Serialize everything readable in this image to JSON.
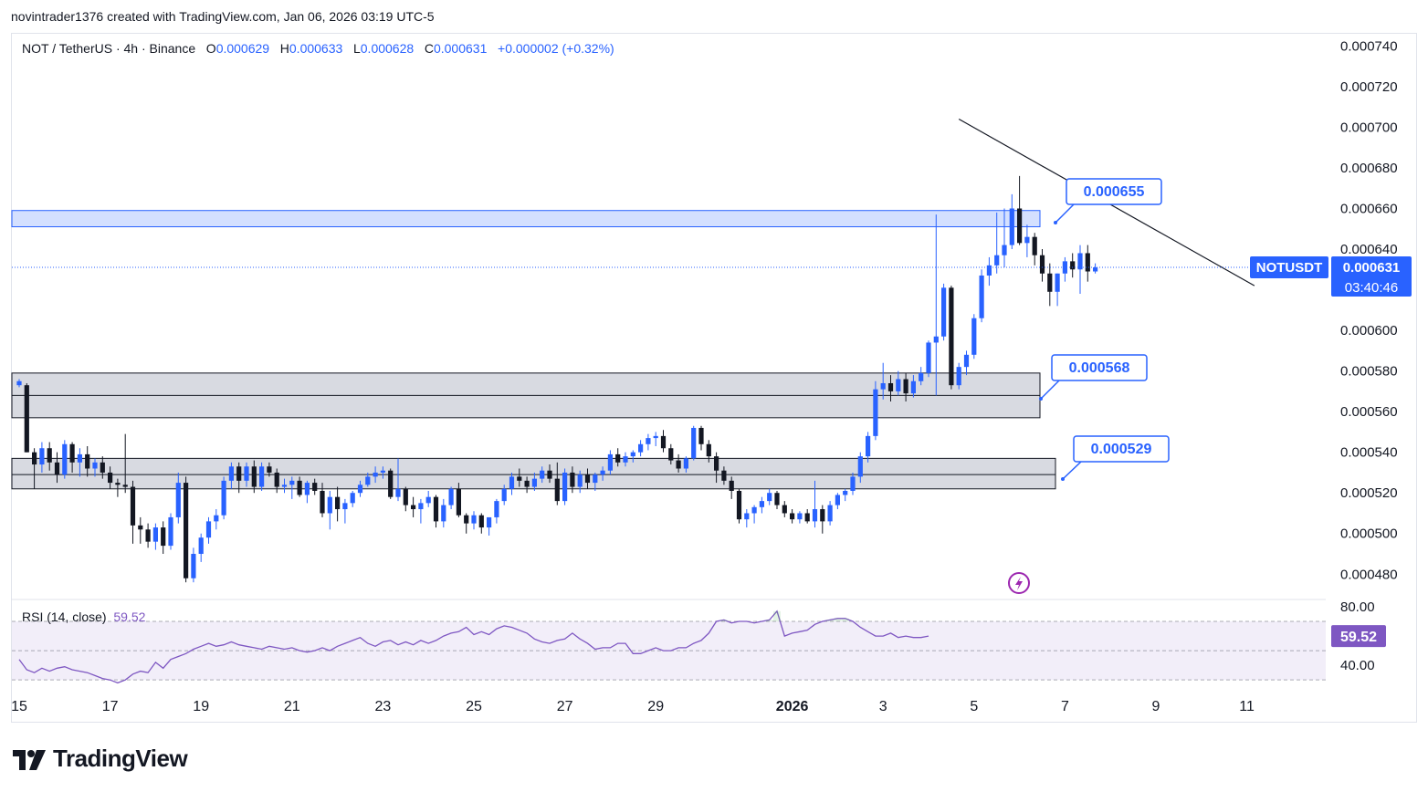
{
  "credit": "novintrader1376 created with TradingView.com, Jan 06, 2026 03:19 UTC-5",
  "legend": {
    "symbol": "NOT / TetherUS · 4h · Binance",
    "open_label": "O",
    "open": "0.000629",
    "high_label": "H",
    "high": "0.000633",
    "low_label": "L",
    "low": "0.000628",
    "close_label": "C",
    "close": "0.000631",
    "change": "+0.000002 (+0.32%)"
  },
  "rsi_legend": {
    "label": "RSI (14, close)",
    "value": "59.52"
  },
  "last_price": {
    "ticker": "NOTUSDT",
    "price": "0.000631",
    "countdown": "03:40:46"
  },
  "rsi_last": "59.52",
  "logo": "TradingView",
  "colors": {
    "up": "#2962ff",
    "down": "#131722",
    "grid": "#f0f3fa",
    "zone_blue": "#2962ff",
    "zone_gray": "#d1d4dc",
    "rsi": "#7e57c2",
    "rsi_band": "#7e57c2"
  },
  "chart_data": {
    "type": "candlestick",
    "symbol": "NOT / TetherUS",
    "interval": "4h",
    "exchange": "Binance",
    "y_ticks": [
      "0.000740",
      "0.000720",
      "0.000700",
      "0.000680",
      "0.000660",
      "0.000640",
      "0.000620",
      "0.000600",
      "0.000580",
      "0.000560",
      "0.000540",
      "0.000520",
      "0.000500",
      "0.000480"
    ],
    "ylim": [
      0.000468,
      0.000746
    ],
    "x_ticks": [
      "15",
      "17",
      "19",
      "21",
      "23",
      "25",
      "27",
      "29",
      "2026",
      "3",
      "5",
      "7",
      "9",
      "11"
    ],
    "x_tick_days": [
      0,
      2,
      4,
      6,
      8,
      10,
      12,
      14,
      17,
      19,
      21,
      23,
      25,
      27
    ],
    "candles_per_day": 6,
    "candles_ohlc": [
      [
        0.000573,
        0.000576,
        0.000572,
        0.000575
      ],
      [
        0.000573,
        0.000574,
        0.00054,
        0.00054
      ],
      [
        0.00054,
        0.000542,
        0.000522,
        0.000534
      ],
      [
        0.000534,
        0.000545,
        0.00053,
        0.000542
      ],
      [
        0.000542,
        0.000545,
        0.000531,
        0.000535
      ],
      [
        0.000535,
        0.00054,
        0.000525,
        0.000529
      ],
      [
        0.000529,
        0.000546,
        0.000527,
        0.000544
      ],
      [
        0.000544,
        0.000545,
        0.00053,
        0.000535
      ],
      [
        0.000535,
        0.000542,
        0.000528,
        0.000539
      ],
      [
        0.000539,
        0.000543,
        0.000528,
        0.000532
      ],
      [
        0.000532,
        0.000537,
        0.000528,
        0.000535
      ],
      [
        0.000535,
        0.000538,
        0.000527,
        0.00053
      ],
      [
        0.00053,
        0.000533,
        0.000522,
        0.000525
      ],
      [
        0.000525,
        0.000527,
        0.000518,
        0.000524
      ],
      [
        0.000524,
        0.000549,
        0.00052,
        0.000523
      ],
      [
        0.000523,
        0.000526,
        0.000495,
        0.000504
      ],
      [
        0.000504,
        0.000508,
        0.000495,
        0.000502
      ],
      [
        0.000502,
        0.000505,
        0.000493,
        0.000496
      ],
      [
        0.000496,
        0.000505,
        0.000492,
        0.000503
      ],
      [
        0.000503,
        0.000506,
        0.00049,
        0.000494
      ],
      [
        0.000494,
        0.00051,
        0.000492,
        0.000508
      ],
      [
        0.000508,
        0.00053,
        0.000505,
        0.000525
      ],
      [
        0.000525,
        0.000528,
        0.000476,
        0.000478
      ],
      [
        0.000478,
        0.000493,
        0.000476,
        0.00049
      ],
      [
        0.00049,
        0.0005,
        0.000486,
        0.000498
      ],
      [
        0.000498,
        0.000508,
        0.000495,
        0.000506
      ],
      [
        0.000506,
        0.000512,
        0.000502,
        0.000509
      ],
      [
        0.000509,
        0.000528,
        0.000507,
        0.000526
      ],
      [
        0.000526,
        0.000535,
        0.000522,
        0.000533
      ],
      [
        0.000533,
        0.000535,
        0.00052,
        0.000526
      ],
      [
        0.000526,
        0.000535,
        0.000523,
        0.000533
      ],
      [
        0.000533,
        0.000536,
        0.00052,
        0.000523
      ],
      [
        0.000523,
        0.000535,
        0.000521,
        0.000533
      ],
      [
        0.000533,
        0.000535,
        0.000528,
        0.00053
      ],
      [
        0.00053,
        0.000532,
        0.00052,
        0.000523
      ],
      [
        0.000523,
        0.000527,
        0.00052,
        0.000524
      ],
      [
        0.000524,
        0.000528,
        0.000517,
        0.000526
      ],
      [
        0.000526,
        0.000528,
        0.000518,
        0.000519
      ],
      [
        0.000519,
        0.000526,
        0.000515,
        0.000525
      ],
      [
        0.000525,
        0.000527,
        0.000519,
        0.000521
      ],
      [
        0.000521,
        0.000525,
        0.000508,
        0.00051
      ],
      [
        0.00051,
        0.000521,
        0.000502,
        0.000518
      ],
      [
        0.000518,
        0.000523,
        0.000506,
        0.000512
      ],
      [
        0.000512,
        0.000517,
        0.000505,
        0.000515
      ],
      [
        0.000515,
        0.000521,
        0.000513,
        0.00052
      ],
      [
        0.00052,
        0.000526,
        0.000518,
        0.000524
      ],
      [
        0.000524,
        0.00053,
        0.000523,
        0.000528
      ],
      [
        0.000528,
        0.000533,
        0.000525,
        0.00053
      ],
      [
        0.00053,
        0.000533,
        0.000527,
        0.000531
      ],
      [
        0.000531,
        0.000532,
        0.000517,
        0.000518
      ],
      [
        0.000518,
        0.000537,
        0.000516,
        0.000522
      ],
      [
        0.000522,
        0.000523,
        0.000511,
        0.000514
      ],
      [
        0.000514,
        0.000518,
        0.000508,
        0.000512
      ],
      [
        0.000512,
        0.000517,
        0.000505,
        0.000515
      ],
      [
        0.000515,
        0.000521,
        0.000513,
        0.000518
      ],
      [
        0.000518,
        0.000519,
        0.000503,
        0.000506
      ],
      [
        0.000506,
        0.000517,
        0.000503,
        0.000514
      ],
      [
        0.000514,
        0.000523,
        0.000512,
        0.000522
      ],
      [
        0.000522,
        0.000525,
        0.000508,
        0.000509
      ],
      [
        0.000509,
        0.00051,
        0.0005,
        0.000505
      ],
      [
        0.000505,
        0.000511,
        0.000502,
        0.000509
      ],
      [
        0.000509,
        0.00051,
        0.0005,
        0.000503
      ],
      [
        0.000503,
        0.000508,
        0.000499,
        0.000508
      ],
      [
        0.000508,
        0.000517,
        0.000505,
        0.000516
      ],
      [
        0.000516,
        0.000524,
        0.000514,
        0.000522
      ],
      [
        0.000522,
        0.00053,
        0.000519,
        0.000528
      ],
      [
        0.000528,
        0.000532,
        0.000523,
        0.000526
      ],
      [
        0.000526,
        0.000528,
        0.00052,
        0.000523
      ],
      [
        0.000523,
        0.00053,
        0.000521,
        0.000527
      ],
      [
        0.000527,
        0.000533,
        0.000525,
        0.000531
      ],
      [
        0.000531,
        0.000534,
        0.000525,
        0.000527
      ],
      [
        0.000527,
        0.000535,
        0.000514,
        0.000516
      ],
      [
        0.000516,
        0.000532,
        0.000514,
        0.00053
      ],
      [
        0.00053,
        0.000533,
        0.00052,
        0.000523
      ],
      [
        0.000523,
        0.000531,
        0.00052,
        0.000529
      ],
      [
        0.000529,
        0.000532,
        0.000522,
        0.000525
      ],
      [
        0.000525,
        0.00053,
        0.000521,
        0.000529
      ],
      [
        0.000529,
        0.000533,
        0.000526,
        0.000531
      ],
      [
        0.000531,
        0.000541,
        0.000529,
        0.000539
      ],
      [
        0.000539,
        0.000542,
        0.000533,
        0.000535
      ],
      [
        0.000535,
        0.00054,
        0.000533,
        0.000538
      ],
      [
        0.000538,
        0.000541,
        0.000535,
        0.00054
      ],
      [
        0.00054,
        0.000546,
        0.000538,
        0.000544
      ],
      [
        0.000544,
        0.000549,
        0.000541,
        0.000547
      ],
      [
        0.000547,
        0.00055,
        0.000543,
        0.000548
      ],
      [
        0.000548,
        0.000551,
        0.00054,
        0.000542
      ],
      [
        0.000542,
        0.000544,
        0.000534,
        0.000536
      ],
      [
        0.000536,
        0.000539,
        0.00053,
        0.000532
      ],
      [
        0.000532,
        0.000538,
        0.00053,
        0.000537
      ],
      [
        0.000537,
        0.000553,
        0.000536,
        0.000552
      ],
      [
        0.000552,
        0.000553,
        0.000541,
        0.000544
      ],
      [
        0.000544,
        0.000546,
        0.000535,
        0.000538
      ],
      [
        0.000538,
        0.00054,
        0.000525,
        0.000531
      ],
      [
        0.000531,
        0.000533,
        0.000524,
        0.000526
      ],
      [
        0.000526,
        0.000528,
        0.000517,
        0.000521
      ],
      [
        0.000521,
        0.000522,
        0.000505,
        0.000507
      ],
      [
        0.000507,
        0.000512,
        0.000503,
        0.00051
      ],
      [
        0.00051,
        0.000514,
        0.000505,
        0.000513
      ],
      [
        0.000513,
        0.000518,
        0.00051,
        0.000516
      ],
      [
        0.000516,
        0.000522,
        0.000514,
        0.00052
      ],
      [
        0.00052,
        0.000521,
        0.000512,
        0.000514
      ],
      [
        0.000514,
        0.000516,
        0.000508,
        0.00051
      ],
      [
        0.00051,
        0.000512,
        0.000505,
        0.000507
      ],
      [
        0.000507,
        0.000511,
        0.000505,
        0.00051
      ],
      [
        0.00051,
        0.000512,
        0.000505,
        0.000506
      ],
      [
        0.000506,
        0.000526,
        0.000503,
        0.000512
      ],
      [
        0.000512,
        0.000514,
        0.0005,
        0.000506
      ],
      [
        0.000506,
        0.000516,
        0.000504,
        0.000514
      ],
      [
        0.000514,
        0.00052,
        0.000512,
        0.000519
      ],
      [
        0.000519,
        0.000522,
        0.000516,
        0.000521
      ],
      [
        0.000521,
        0.00053,
        0.000519,
        0.000528
      ],
      [
        0.000528,
        0.00054,
        0.000525,
        0.000538
      ],
      [
        0.000538,
        0.00055,
        0.000535,
        0.000548
      ],
      [
        0.000548,
        0.000575,
        0.000546,
        0.000571
      ],
      [
        0.000571,
        0.000584,
        0.000566,
        0.000574
      ],
      [
        0.000574,
        0.000578,
        0.000565,
        0.00057
      ],
      [
        0.00057,
        0.00058,
        0.000568,
        0.000576
      ],
      [
        0.000576,
        0.000579,
        0.000565,
        0.000569
      ],
      [
        0.000569,
        0.000578,
        0.000567,
        0.000575
      ],
      [
        0.000575,
        0.000582,
        0.000573,
        0.000579
      ],
      [
        0.000579,
        0.000595,
        0.000577,
        0.000594
      ],
      [
        0.000594,
        0.000657,
        0.000568,
        0.000597
      ],
      [
        0.000597,
        0.000623,
        0.000595,
        0.000621
      ],
      [
        0.000621,
        0.000622,
        0.000571,
        0.000573
      ],
      [
        0.000573,
        0.000584,
        0.000571,
        0.000582
      ],
      [
        0.000582,
        0.00059,
        0.000578,
        0.000588
      ],
      [
        0.000588,
        0.000608,
        0.000586,
        0.000606
      ],
      [
        0.000606,
        0.00063,
        0.000604,
        0.000627
      ],
      [
        0.000627,
        0.000636,
        0.000622,
        0.000632
      ],
      [
        0.000632,
        0.000658,
        0.000628,
        0.000637
      ],
      [
        0.000637,
        0.00066,
        0.000631,
        0.000642
      ],
      [
        0.000642,
        0.000667,
        0.00064,
        0.00066
      ],
      [
        0.00066,
        0.000676,
        0.000642,
        0.000643
      ],
      [
        0.000643,
        0.000652,
        0.000636,
        0.000646
      ],
      [
        0.000646,
        0.000648,
        0.000632,
        0.000637
      ],
      [
        0.000637,
        0.00064,
        0.000624,
        0.000628
      ],
      [
        0.000628,
        0.000633,
        0.000612,
        0.000619
      ],
      [
        0.000619,
        0.000628,
        0.000612,
        0.000628
      ],
      [
        0.000628,
        0.000636,
        0.000624,
        0.000634
      ],
      [
        0.000634,
        0.000638,
        0.000626,
        0.00063
      ],
      [
        0.00063,
        0.000642,
        0.000618,
        0.000638
      ],
      [
        0.000638,
        0.000642,
        0.000624,
        0.000629
      ],
      [
        0.000629,
        0.000633,
        0.000628,
        0.000631
      ]
    ],
    "rsi": {
      "label": "RSI (14, close)",
      "levels": [
        70,
        50,
        30
      ],
      "ylim": [
        22,
        85
      ],
      "values": [
        44,
        37,
        35,
        38,
        36,
        38,
        39,
        37,
        36,
        35,
        33,
        31,
        30,
        28,
        30,
        34,
        36,
        35,
        42,
        38,
        44,
        46,
        48,
        51,
        53,
        55,
        53,
        54,
        56,
        54,
        53,
        52,
        51,
        53,
        52,
        51,
        52,
        50,
        49,
        50,
        52,
        50,
        53,
        55,
        57,
        59,
        55,
        53,
        56,
        57,
        54,
        56,
        54,
        57,
        55,
        57,
        60,
        62,
        63,
        66,
        61,
        63,
        61,
        65,
        67,
        66,
        64,
        62,
        58,
        56,
        55,
        57,
        58,
        62,
        58,
        55,
        51,
        52,
        52,
        55,
        55,
        48,
        48,
        50,
        52,
        50,
        50,
        52,
        52,
        55,
        57,
        62,
        70,
        71,
        69,
        70,
        70,
        69,
        70,
        71,
        77,
        60,
        62,
        63,
        64,
        68,
        70,
        71,
        72,
        72,
        70,
        66,
        63,
        60,
        60,
        62,
        59,
        60,
        59,
        59,
        60
      ]
    },
    "zones": [
      {
        "kind": "blue-zone",
        "from": 0.000651,
        "to": 0.000659,
        "label": "0.000655"
      },
      {
        "kind": "gray-zone",
        "from": 0.000557,
        "to": 0.000579,
        "mid": 0.000568,
        "label": "0.000568"
      },
      {
        "kind": "gray-zone",
        "from": 0.000522,
        "to": 0.000537,
        "mid": 0.000529,
        "label": "0.000529"
      }
    ],
    "trendline": {
      "from": [
        0.000704,
        124
      ],
      "to": [
        0.000622,
        163
      ]
    }
  }
}
